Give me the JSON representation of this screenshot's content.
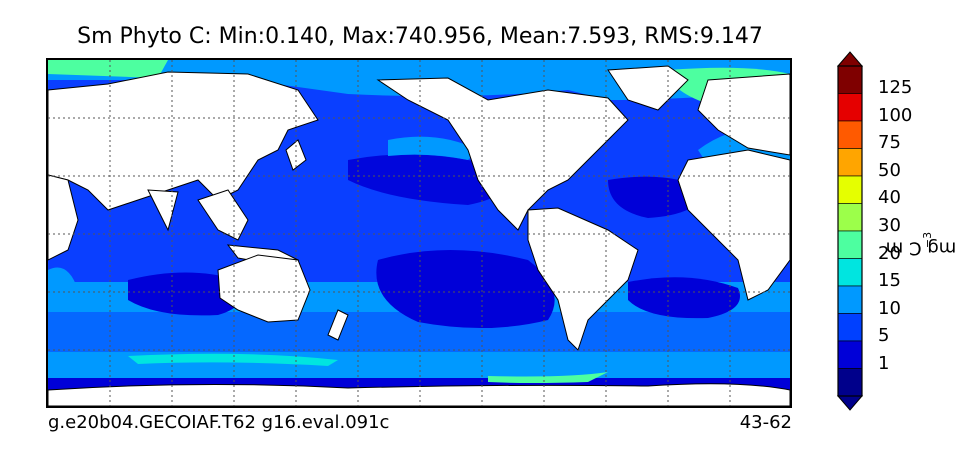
{
  "title": "Sm Phyto C: Min:0.140, Max:740.956, Mean:7.593, RMS:9.147",
  "footer_left": "g.e20b04.GECOIAF.T62 g16.eval.091c",
  "footer_right": "43-62",
  "colorbar": {
    "unit_base": "mg C m",
    "unit_exponent": "−3",
    "tick_labels": [
      "125",
      "100",
      "75",
      "50",
      "40",
      "30",
      "20",
      "15",
      "10",
      "5",
      "1"
    ],
    "colors": [
      "#7f0000",
      "#e50000",
      "#ff5a00",
      "#ffa500",
      "#e5ff00",
      "#9cff4a",
      "#4dffa0",
      "#00e5e0",
      "#0099ff",
      "#0040ff",
      "#0000d8",
      "#00008b"
    ]
  },
  "map_colors": {
    "land": "#ffffff",
    "ocean_1_5": "#0000d8",
    "ocean_5_10": "#0a3fff",
    "ocean_10_15": "#0099ff",
    "ocean_15_20": "#00e5e0",
    "ocean_20_30": "#4dffa0",
    "ocean_30_40": "#9cff4a"
  }
}
